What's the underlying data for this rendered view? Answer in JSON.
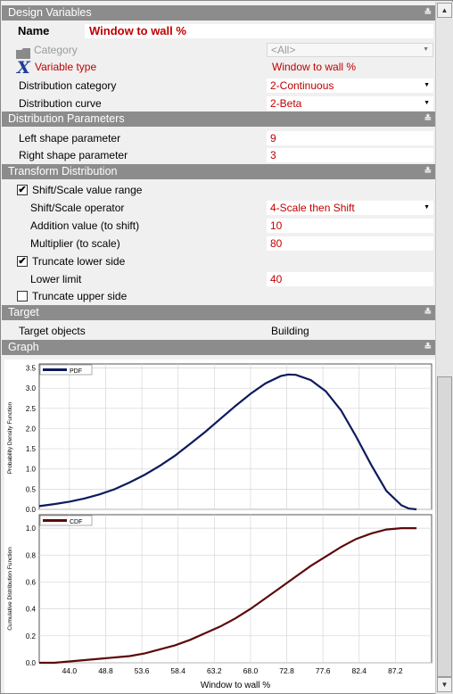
{
  "design_variables": {
    "header": "Design Variables",
    "name_label": "Name",
    "name_value": "Window to wall %",
    "category_label": "Category",
    "category_value": "<All>",
    "variable_type_label": "Variable type",
    "variable_type_value": "Window to wall %",
    "distribution_category_label": "Distribution category",
    "distribution_category_value": "2-Continuous",
    "distribution_curve_label": "Distribution curve",
    "distribution_curve_value": "2-Beta"
  },
  "distribution_parameters": {
    "header": "Distribution Parameters",
    "left_shape_label": "Left shape parameter",
    "left_shape_value": "9",
    "right_shape_label": "Right shape parameter",
    "right_shape_value": "3"
  },
  "transform_distribution": {
    "header": "Transform Distribution",
    "shift_scale_label": "Shift/Scale value range",
    "shift_scale_checked": true,
    "operator_label": "Shift/Scale operator",
    "operator_value": "4-Scale then Shift",
    "addition_label": "Addition value (to shift)",
    "addition_value": "10",
    "multiplier_label": "Multiplier (to scale)",
    "multiplier_value": "80",
    "truncate_lower_label": "Truncate lower side",
    "truncate_lower_checked": true,
    "lower_limit_label": "Lower limit",
    "lower_limit_value": "40",
    "truncate_upper_label": "Truncate upper side",
    "truncate_upper_checked": false
  },
  "target": {
    "header": "Target",
    "target_objects_label": "Target objects",
    "target_objects_value": "Building"
  },
  "graph": {
    "header": "Graph"
  },
  "colors": {
    "header_bg": "#8c8c8c",
    "value_red": "#c00000",
    "pdf_line": "#0d1a5e",
    "cdf_line": "#5c0a0a"
  },
  "icons": {
    "category": "folder-icon",
    "variable_type": "variable-x-icon",
    "collapse": "double-chevron-down-icon"
  },
  "chart_data": [
    {
      "type": "line",
      "title": "",
      "xlabel": "",
      "ylabel": "Probability Density Function",
      "legend": "top-left",
      "grid": true,
      "xlim": [
        40,
        92
      ],
      "ylim": [
        0,
        3.6
      ],
      "yticks": [
        "0.0",
        "0.5",
        "1.0",
        "1.5",
        "2.0",
        "2.5",
        "3.0",
        "3.5"
      ],
      "series": [
        {
          "name": "PDF",
          "x": [
            40,
            42,
            44,
            46,
            48,
            50,
            52,
            54,
            56,
            58,
            60,
            62,
            64,
            66,
            68,
            70,
            72,
            73,
            74,
            76,
            78,
            80,
            82,
            84,
            86,
            88,
            89,
            90
          ],
          "y": [
            0.08,
            0.13,
            0.19,
            0.27,
            0.37,
            0.5,
            0.67,
            0.86,
            1.08,
            1.33,
            1.62,
            1.92,
            2.24,
            2.56,
            2.86,
            3.12,
            3.3,
            3.34,
            3.33,
            3.2,
            2.92,
            2.45,
            1.8,
            1.1,
            0.46,
            0.1,
            0.02,
            0.0
          ]
        }
      ]
    },
    {
      "type": "line",
      "title": "",
      "xlabel": "Window to wall %",
      "ylabel": "Cumulative Distribution Function",
      "legend": "top-left",
      "grid": true,
      "xlim": [
        40,
        92
      ],
      "ylim": [
        0,
        1.1
      ],
      "xticks": [
        "44.0",
        "48.8",
        "53.6",
        "58.4",
        "63.2",
        "68.0",
        "72.8",
        "77.6",
        "82.4",
        "87.2"
      ],
      "yticks": [
        "0.0",
        "0.2",
        "0.4",
        "0.6",
        "0.8",
        "1.0"
      ],
      "series": [
        {
          "name": "CDF",
          "x": [
            40,
            42,
            44,
            46,
            48,
            50,
            52,
            54,
            56,
            58,
            60,
            62,
            64,
            66,
            68,
            70,
            72,
            74,
            76,
            78,
            80,
            82,
            84,
            86,
            88,
            90
          ],
          "y": [
            0.0,
            0.0,
            0.01,
            0.02,
            0.03,
            0.04,
            0.05,
            0.07,
            0.1,
            0.13,
            0.17,
            0.22,
            0.27,
            0.33,
            0.4,
            0.48,
            0.56,
            0.64,
            0.72,
            0.79,
            0.86,
            0.92,
            0.96,
            0.99,
            1.0,
            1.0
          ]
        }
      ]
    }
  ]
}
